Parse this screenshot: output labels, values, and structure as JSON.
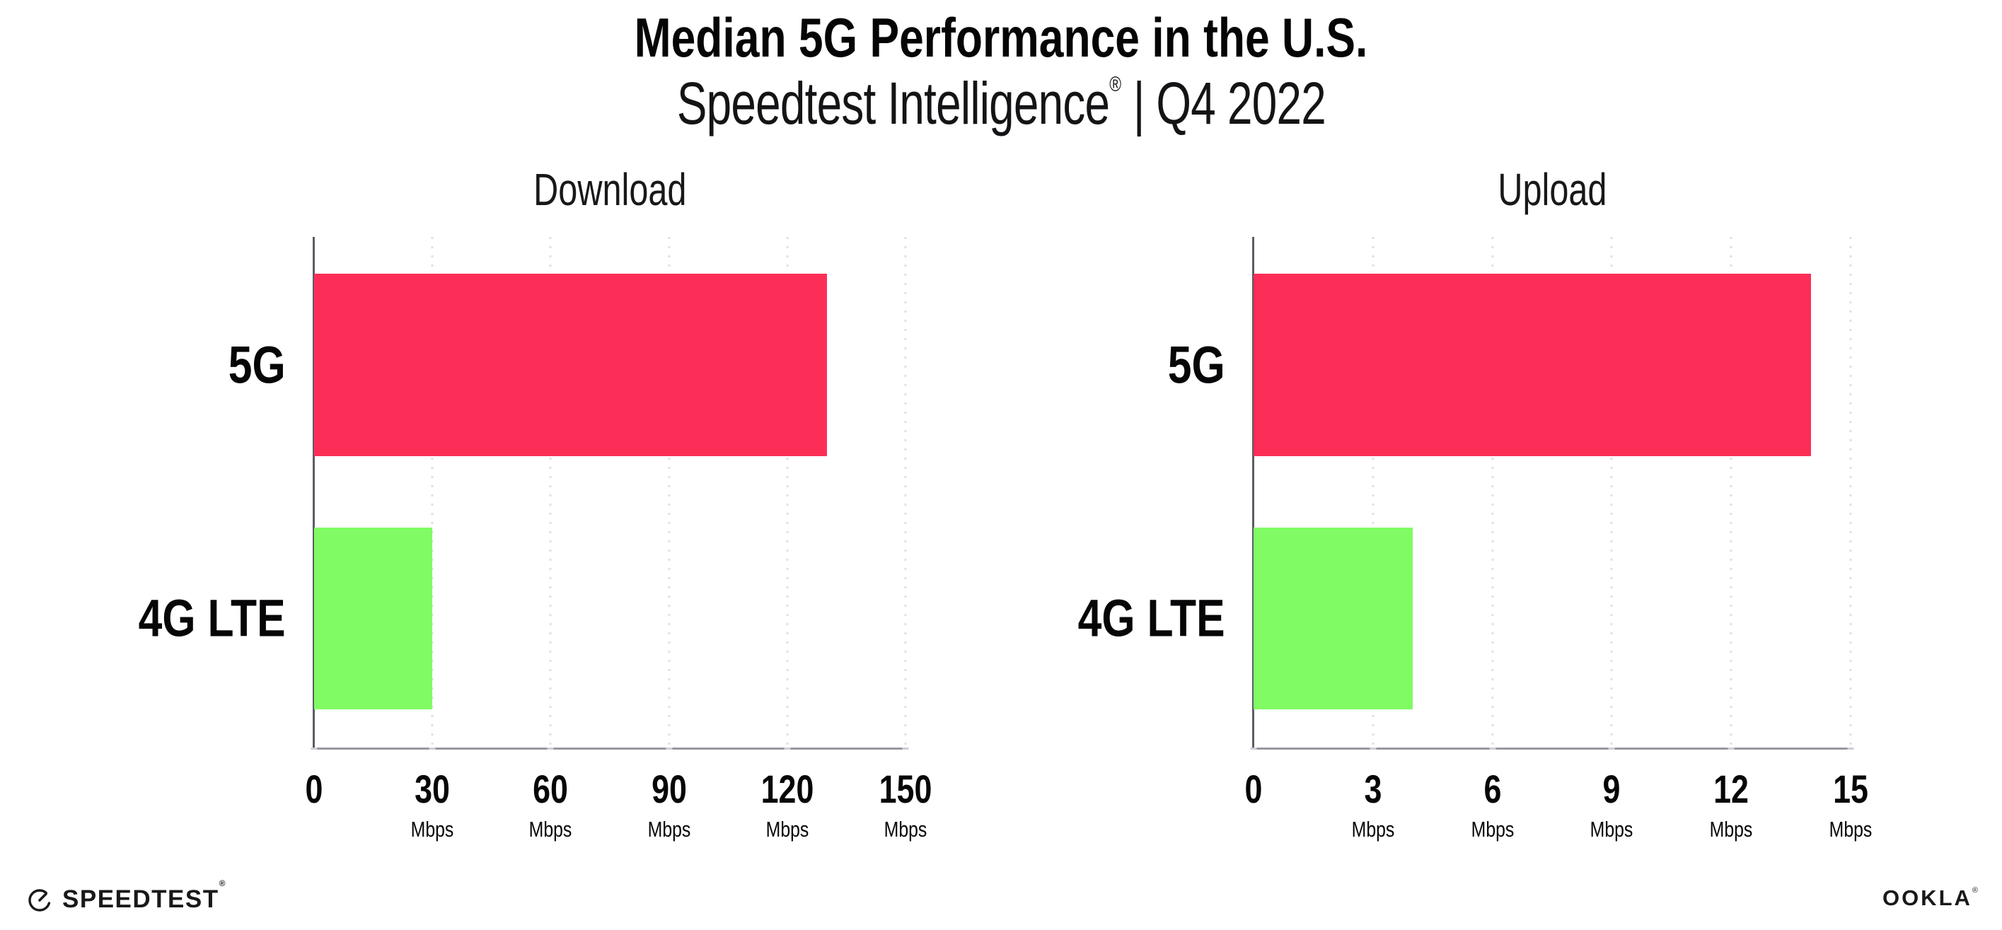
{
  "header": {
    "title": "Median 5G Performance in the U.S.",
    "subtitle_brand": "Speedtest Intelligence",
    "subtitle_reg": "®",
    "subtitle_sep": "|",
    "subtitle_period": "Q4 2022"
  },
  "colors": {
    "bar_5g": "#FC2E57",
    "bar_4g_lte": "#80FB64",
    "gridline": "#DFDFE8",
    "y_axis": "#5C5C66",
    "x_axis": "#97979F",
    "text": "#0C0C0E"
  },
  "chart_data": [
    {
      "type": "bar",
      "orientation": "horizontal",
      "title": "Download",
      "categories": [
        "5G",
        "4G LTE"
      ],
      "values": [
        130,
        30
      ],
      "unit": "Mbps",
      "xlim": [
        0,
        150
      ],
      "ticks": [
        0,
        30,
        60,
        90,
        120,
        150
      ],
      "tick_unit": "Mbps",
      "bar_colors": [
        "#FC2E57",
        "#80FB64"
      ],
      "grid": "dotted-vertical",
      "legend": "none",
      "xlabel": "",
      "ylabel": ""
    },
    {
      "type": "bar",
      "orientation": "horizontal",
      "title": "Upload",
      "categories": [
        "5G",
        "4G LTE"
      ],
      "values": [
        14,
        4
      ],
      "unit": "Mbps",
      "xlim": [
        0,
        15
      ],
      "ticks": [
        0,
        3,
        6,
        9,
        12,
        15
      ],
      "tick_unit": "Mbps",
      "bar_colors": [
        "#FC2E57",
        "#80FB64"
      ],
      "grid": "dotted-vertical",
      "legend": "none",
      "xlabel": "",
      "ylabel": ""
    }
  ],
  "footer": {
    "speedtest_label": "SPEEDTEST",
    "speedtest_mark": "®",
    "ookla_label": "OOKLA",
    "ookla_mark": "®"
  }
}
